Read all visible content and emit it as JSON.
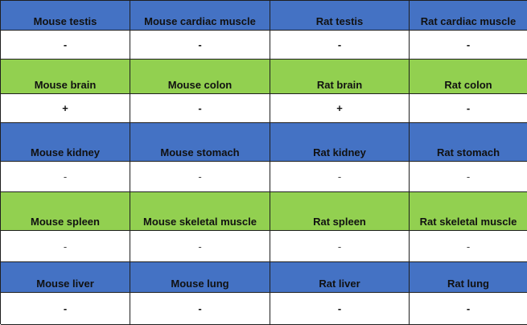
{
  "colors": {
    "blue": "#4472c4",
    "green": "#92d050",
    "white": "#ffffff"
  },
  "rows": [
    {
      "band": "blue",
      "headers": [
        "Mouse testis",
        "Mouse cardiac muscle",
        "Rat testis",
        "Rat cardiac muscle"
      ],
      "values": [
        "-",
        "-",
        "-",
        "-"
      ],
      "thin": false
    },
    {
      "band": "green",
      "headers": [
        "Mouse brain",
        "Mouse colon",
        "Rat brain",
        "Rat colon"
      ],
      "values": [
        "+",
        "-",
        "+",
        "-"
      ],
      "thin": false
    },
    {
      "band": "blue",
      "headers": [
        "Mouse kidney",
        "Mouse stomach",
        "Rat kidney",
        "Rat stomach"
      ],
      "values": [
        "-",
        "-",
        "-",
        "-"
      ],
      "thin": true
    },
    {
      "band": "green",
      "headers": [
        "Mouse spleen",
        "Mouse skeletal muscle",
        "Rat spleen",
        "Rat skeletal muscle"
      ],
      "values": [
        "-",
        "-",
        "-",
        "-"
      ],
      "thin": true
    },
    {
      "band": "blue",
      "headers": [
        "Mouse liver",
        "Mouse lung",
        "Rat liver",
        "Rat lung"
      ],
      "values": [
        "-",
        "-",
        "-",
        "-"
      ],
      "thin": false
    }
  ]
}
